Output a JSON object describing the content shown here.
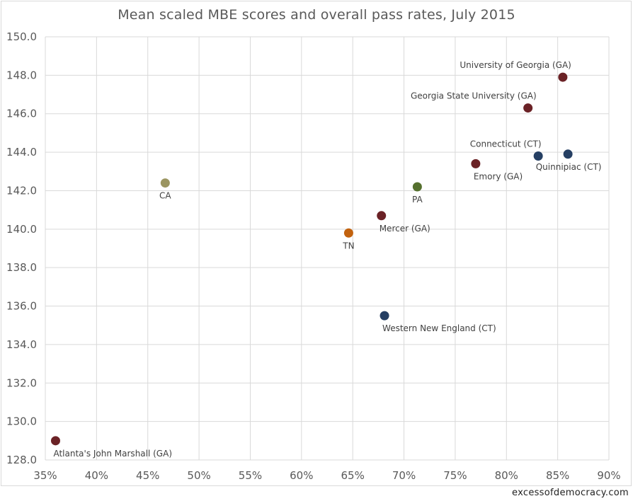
{
  "chart_data": {
    "type": "scatter",
    "title": "Mean scaled MBE scores and overall pass rates, July 2015",
    "xlabel": "",
    "ylabel": "",
    "xlim": [
      35,
      90
    ],
    "ylim": [
      128,
      150
    ],
    "x_ticks": [
      "35%",
      "40%",
      "45%",
      "50%",
      "55%",
      "60%",
      "65%",
      "70%",
      "75%",
      "80%",
      "85%",
      "90%"
    ],
    "x_tick_values": [
      35,
      40,
      45,
      50,
      55,
      60,
      65,
      70,
      75,
      80,
      85,
      90
    ],
    "y_ticks": [
      "128.0",
      "130.0",
      "132.0",
      "134.0",
      "136.0",
      "138.0",
      "140.0",
      "142.0",
      "144.0",
      "146.0",
      "148.0",
      "150.0"
    ],
    "y_tick_values": [
      128,
      130,
      132,
      134,
      136,
      138,
      140,
      142,
      144,
      146,
      148,
      150
    ],
    "grid": true,
    "points": [
      {
        "label": "University of Georgia (GA)",
        "x": 85.5,
        "y": 147.9,
        "color": "#6b2226",
        "label_pos": "above-left"
      },
      {
        "label": "Georgia State University (GA)",
        "x": 82.1,
        "y": 146.3,
        "color": "#6b2226",
        "label_pos": "above-left"
      },
      {
        "label": "Connecticut (CT)",
        "x": 83.1,
        "y": 143.8,
        "color": "#253f63",
        "label_pos": "above"
      },
      {
        "label": "Quinnipiac (CT)",
        "x": 86.0,
        "y": 143.9,
        "color": "#253f63",
        "label_pos": "below"
      },
      {
        "label": "Emory (GA)",
        "x": 77.0,
        "y": 143.4,
        "color": "#6b2226",
        "label_pos": "below-right"
      },
      {
        "label": "PA",
        "x": 71.3,
        "y": 142.2,
        "color": "#55702e",
        "label_pos": "below"
      },
      {
        "label": "CA",
        "x": 46.7,
        "y": 142.4,
        "color": "#9b9561",
        "label_pos": "below"
      },
      {
        "label": "Mercer (GA)",
        "x": 67.8,
        "y": 140.7,
        "color": "#6b2226",
        "label_pos": "below-right"
      },
      {
        "label": "TN",
        "x": 64.6,
        "y": 139.8,
        "color": "#c2620e",
        "label_pos": "below"
      },
      {
        "label": "Western New England (CT)",
        "x": 68.1,
        "y": 135.5,
        "color": "#253f63",
        "label_pos": "below-right"
      },
      {
        "label": "Atlanta's John Marshall (GA)",
        "x": 36.0,
        "y": 129.0,
        "color": "#6b2226",
        "label_pos": "below-right"
      }
    ]
  },
  "credit": "excessofdemocracy.com"
}
